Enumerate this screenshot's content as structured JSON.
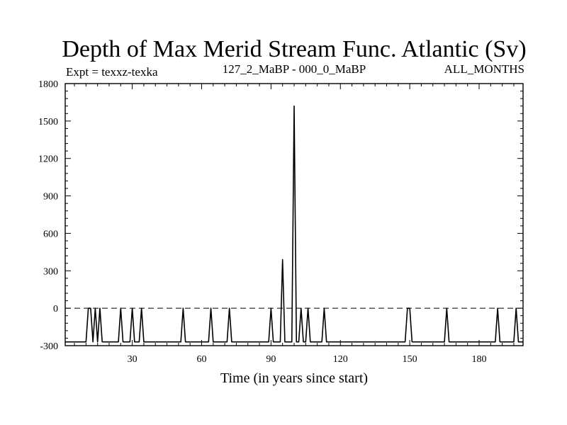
{
  "chart_data": {
    "type": "line",
    "title": "Depth of Max Merid Stream Func. Atlantic (Sv)",
    "subtitle_left": "Expt = texxz-texka",
    "subtitle_center": "127_2_MaBP - 000_0_MaBP",
    "subtitle_right": "ALL_MONTHS",
    "xlabel": "Time (in years since start)",
    "ylabel": "",
    "xlim": [
      1,
      199
    ],
    "ylim": [
      -300,
      1800
    ],
    "xticks": [
      30,
      60,
      90,
      120,
      150,
      180
    ],
    "yticks": [
      -300,
      0,
      300,
      600,
      900,
      1200,
      1500,
      1800
    ],
    "reference_line": {
      "y": 0,
      "style": "dashed"
    },
    "grid": false,
    "series": [
      {
        "color": "#000000",
        "points": [
          [
            1,
            -270
          ],
          [
            10,
            -270
          ],
          [
            11,
            0
          ],
          [
            12,
            0
          ],
          [
            13,
            -270
          ],
          [
            14,
            0
          ],
          [
            15,
            -270
          ],
          [
            16,
            0
          ],
          [
            17,
            -270
          ],
          [
            24,
            -270
          ],
          [
            25,
            0
          ],
          [
            26,
            -270
          ],
          [
            29,
            -270
          ],
          [
            30,
            0
          ],
          [
            31,
            -270
          ],
          [
            33,
            -270
          ],
          [
            34,
            0
          ],
          [
            35,
            -270
          ],
          [
            51,
            -270
          ],
          [
            52,
            0
          ],
          [
            53,
            -270
          ],
          [
            63,
            -270
          ],
          [
            64,
            0
          ],
          [
            65,
            -270
          ],
          [
            71,
            -270
          ],
          [
            72,
            0
          ],
          [
            73,
            -270
          ],
          [
            89,
            -270
          ],
          [
            90,
            0
          ],
          [
            91,
            -270
          ],
          [
            94,
            -270
          ],
          [
            95,
            390
          ],
          [
            96,
            -270
          ],
          [
            99,
            -270
          ],
          [
            100,
            1620
          ],
          [
            101,
            -270
          ],
          [
            102,
            -270
          ],
          [
            103,
            0
          ],
          [
            104,
            -270
          ],
          [
            105,
            -270
          ],
          [
            106,
            0
          ],
          [
            107,
            -270
          ],
          [
            112,
            -270
          ],
          [
            113,
            0
          ],
          [
            114,
            -270
          ],
          [
            148,
            -270
          ],
          [
            149,
            0
          ],
          [
            150,
            0
          ],
          [
            151,
            -270
          ],
          [
            165,
            -270
          ],
          [
            166,
            0
          ],
          [
            167,
            -270
          ],
          [
            187,
            -270
          ],
          [
            188,
            0
          ],
          [
            189,
            -270
          ],
          [
            195,
            -270
          ],
          [
            196,
            0
          ],
          [
            197,
            -270
          ],
          [
            199,
            -270
          ]
        ]
      }
    ]
  }
}
